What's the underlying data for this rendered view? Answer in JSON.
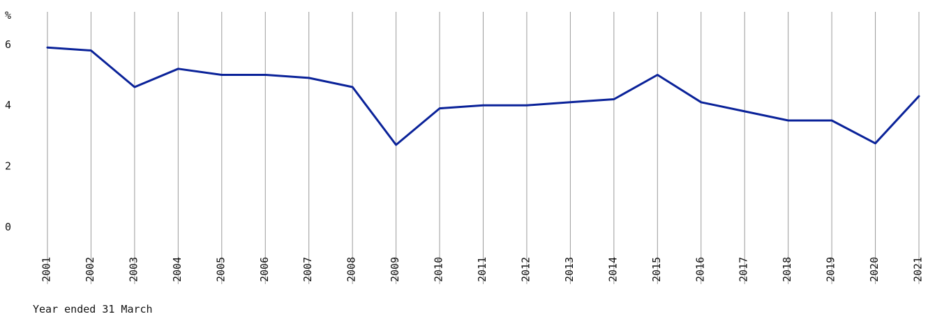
{
  "chart_data": {
    "type": "line",
    "title": "",
    "ylabel": "%",
    "xlabel": "Year ended 31 March",
    "ylim": [
      0,
      7
    ],
    "yticks": [
      0,
      2,
      4,
      6
    ],
    "grid": {
      "vertical": true,
      "horizontal": false
    },
    "categories": [
      "2001",
      "2002",
      "2003",
      "2004",
      "2005",
      "2006",
      "2007",
      "2008",
      "2009",
      "2010",
      "2011",
      "2012",
      "2013",
      "2014",
      "2015",
      "2016",
      "2017",
      "2018",
      "2019",
      "2020",
      "2021"
    ],
    "series": [
      {
        "color": "#0a2299",
        "values": [
          5.9,
          5.8,
          4.6,
          5.2,
          5.0,
          5.0,
          4.9,
          4.6,
          2.7,
          3.9,
          4.0,
          4.0,
          4.1,
          4.2,
          5.0,
          4.1,
          3.8,
          3.5,
          3.5,
          2.75,
          4.3
        ]
      }
    ]
  }
}
